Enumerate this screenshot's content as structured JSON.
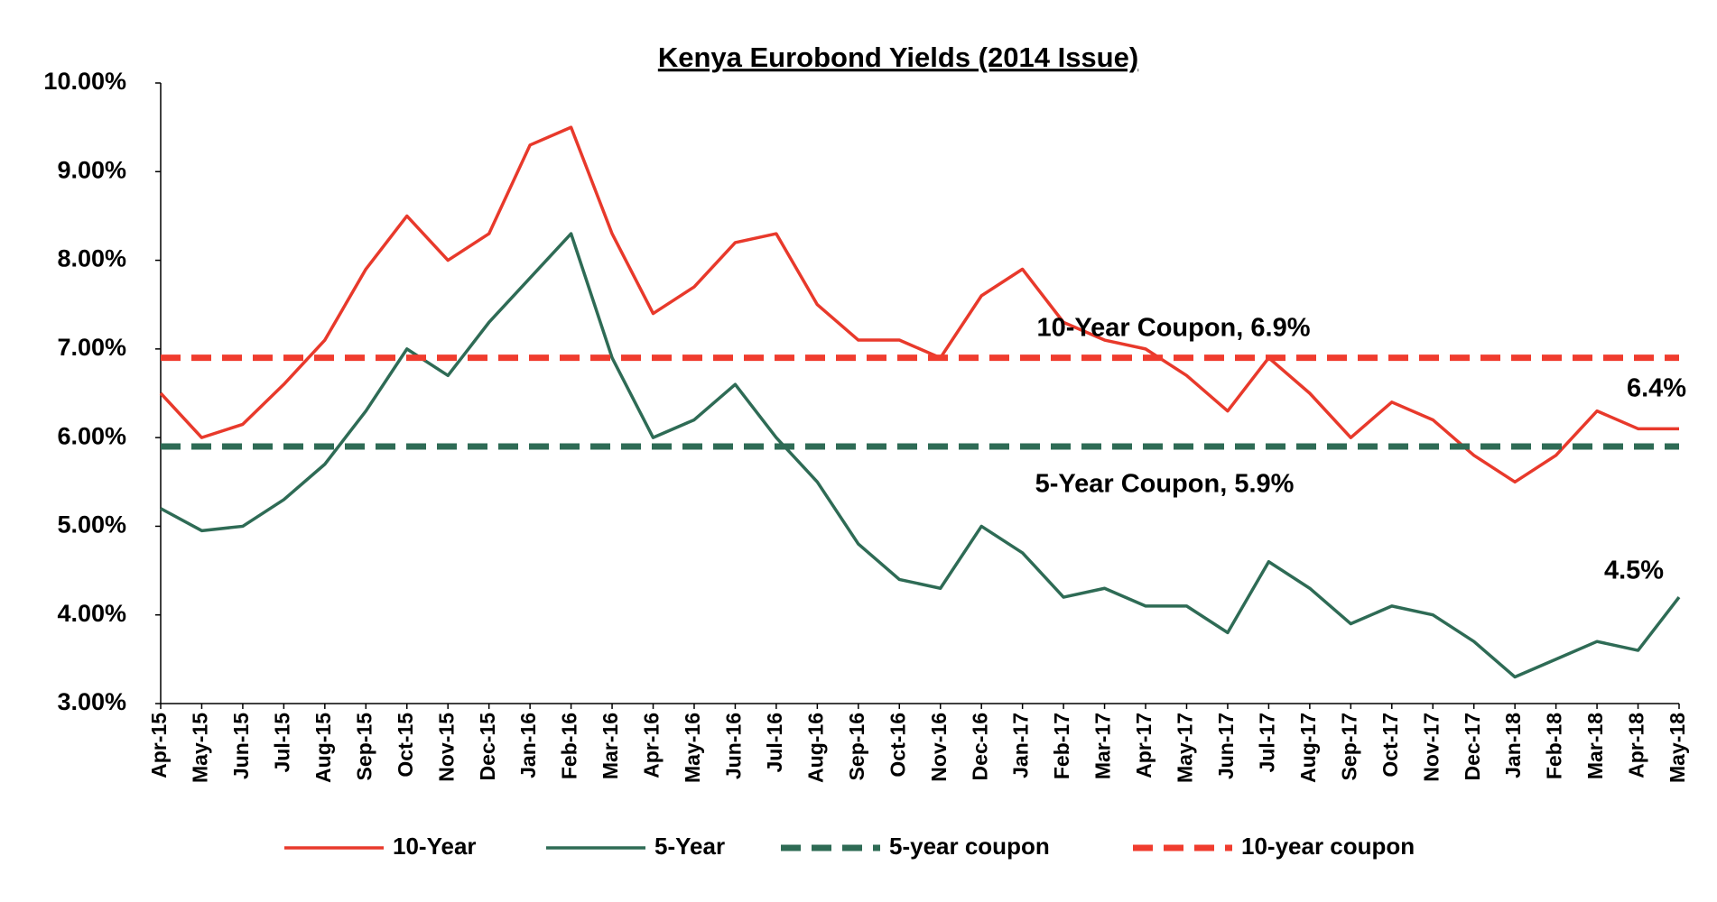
{
  "chart_data": {
    "type": "line",
    "title": "Kenya Eurobond  Yields (2014 Issue)",
    "categories": [
      "Apr-15",
      "May-15",
      "Jun-15",
      "Jul-15",
      "Aug-15",
      "Sep-15",
      "Oct-15",
      "Nov-15",
      "Dec-15",
      "Jan-16",
      "Feb-16",
      "Mar-16",
      "Apr-16",
      "May-16",
      "Jun-16",
      "Jul-16",
      "Aug-16",
      "Sep-16",
      "Oct-16",
      "Nov-16",
      "Dec-16",
      "Jan-17",
      "Feb-17",
      "Mar-17",
      "Apr-17",
      "May-17",
      "Jun-17",
      "Jul-17",
      "Aug-17",
      "Sep-17",
      "Oct-17",
      "Nov-17",
      "Dec-17",
      "Jan-18",
      "Feb-18",
      "Mar-18",
      "Apr-18",
      "May-18"
    ],
    "series": [
      {
        "name": "10-Year",
        "color": "#e8392b",
        "values": [
          6.5,
          6.0,
          6.15,
          6.6,
          7.1,
          7.9,
          8.5,
          8.0,
          8.3,
          9.3,
          9.5,
          8.3,
          7.4,
          7.7,
          8.2,
          8.3,
          7.5,
          7.1,
          7.1,
          6.9,
          7.6,
          7.9,
          7.3,
          7.1,
          7.0,
          6.7,
          6.3,
          6.9,
          6.5,
          6.0,
          6.4,
          6.2,
          5.8,
          5.5,
          5.8,
          6.3,
          6.1,
          6.1
        ]
      },
      {
        "name": "5-Year",
        "color": "#2e6b55",
        "values": [
          5.2,
          4.95,
          5.0,
          5.3,
          5.7,
          6.3,
          7.0,
          6.7,
          7.3,
          7.8,
          8.3,
          6.9,
          6.0,
          6.2,
          6.6,
          6.0,
          5.5,
          4.8,
          4.4,
          4.3,
          5.0,
          4.7,
          4.2,
          4.3,
          4.1,
          4.1,
          3.8,
          4.6,
          4.3,
          3.9,
          4.1,
          4.0,
          3.7,
          3.3,
          3.5,
          3.7,
          3.6,
          4.2
        ]
      },
      {
        "name": "5-year coupon",
        "color": "#2e6b55",
        "dashed": true,
        "value": 5.9
      },
      {
        "name": "10-year coupon",
        "color": "#f03c2e",
        "dashed": true,
        "value": 6.9
      }
    ],
    "annotations": [
      "10-Year Coupon, 6.9%",
      "5-Year Coupon, 5.9%",
      "6.4%",
      "4.5%"
    ],
    "ylim": [
      3,
      10
    ],
    "yticks": [
      {
        "value": 3,
        "label": "3.00%"
      },
      {
        "value": 4,
        "label": "4.00%"
      },
      {
        "value": 5,
        "label": "5.00%"
      },
      {
        "value": 6,
        "label": "6.00%"
      },
      {
        "value": 7,
        "label": "7.00%"
      },
      {
        "value": 8,
        "label": "8.00%"
      },
      {
        "value": 9,
        "label": "9.00%"
      },
      {
        "value": 10,
        "label": "10.00%"
      }
    ],
    "grid": false,
    "legend": "bottom"
  }
}
